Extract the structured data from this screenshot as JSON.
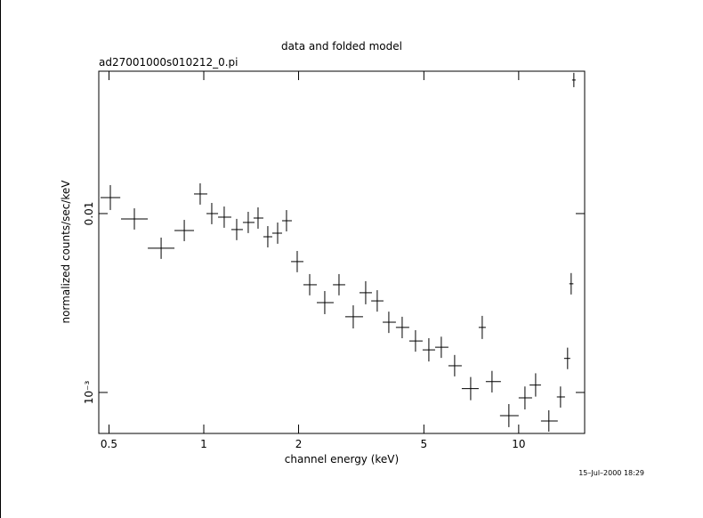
{
  "chart_data": {
    "type": "errorbar",
    "title": "data and folded model",
    "subtitle": "ad27001000s010212_0.pi",
    "x_label": "channel energy (keV)",
    "y_label": "normalized counts/sec/keV",
    "annotation": "15–Jul–2000 18:29",
    "x_scale": "log",
    "y_scale": "log",
    "xlim": [
      0.464,
      16.2
    ],
    "ylim": [
      0.00059,
      0.0625
    ],
    "xticks": [
      0.5,
      1,
      2,
      5,
      10
    ],
    "yticks": [
      {
        "value": 0.001,
        "label": "10⁻³"
      },
      0.01
    ],
    "color": "#000000",
    "x": [
      0.505,
      0.602,
      0.732,
      0.867,
      0.974,
      1.06,
      1.161,
      1.272,
      1.384,
      1.487,
      1.597,
      1.716,
      1.831,
      1.98,
      2.169,
      2.422,
      2.688,
      2.983,
      3.267,
      3.555,
      3.869,
      4.266,
      4.703,
      5.185,
      5.679,
      6.261,
      7.04,
      7.661,
      8.229,
      9.309,
      10.47,
      11.32,
      12.47,
      13.58,
      14.3,
      14.68,
      14.97
    ],
    "x_low": [
      0.47,
      0.546,
      0.664,
      0.807,
      0.931,
      1.02,
      1.11,
      1.223,
      1.331,
      1.439,
      1.546,
      1.65,
      1.773,
      1.893,
      2.072,
      2.285,
      2.571,
      2.813,
      3.122,
      3.401,
      3.7,
      4.075,
      4.493,
      4.954,
      5.428,
      5.982,
      6.596,
      7.465,
      7.863,
      8.723,
      10.0,
      10.83,
      11.77,
      13.22,
      13.94,
      14.48,
      14.78
    ],
    "x_high": [
      0.543,
      0.664,
      0.807,
      0.931,
      1.026,
      1.11,
      1.223,
      1.331,
      1.449,
      1.546,
      1.65,
      1.773,
      1.904,
      2.072,
      2.285,
      2.585,
      2.813,
      3.204,
      3.42,
      3.721,
      4.075,
      4.493,
      4.954,
      5.428,
      5.982,
      6.596,
      7.465,
      7.863,
      8.78,
      10.0,
      11.03,
      11.77,
      13.31,
      14.03,
      14.58,
      14.92,
      15.17
    ],
    "values": [
      0.01229,
      0.00933,
      0.0064,
      0.00804,
      0.01287,
      0.01,
      0.00955,
      0.00814,
      0.00892,
      0.00944,
      0.00742,
      0.00777,
      0.00912,
      0.00539,
      0.004,
      0.00318,
      0.004,
      0.00265,
      0.00361,
      0.00325,
      0.00247,
      0.00231,
      0.00194,
      0.00173,
      0.00179,
      0.00141,
      0.00105,
      0.00231,
      0.00115,
      0.000742,
      0.000933,
      0.0011,
      0.000693,
      0.000944,
      0.00155,
      0.00405,
      0.0558
    ],
    "y_low": [
      0.01047,
      0.00814,
      0.00558,
      0.00701,
      0.01122,
      0.00872,
      0.00833,
      0.0071,
      0.00778,
      0.00823,
      0.00647,
      0.00678,
      0.00795,
      0.0047,
      0.00349,
      0.00274,
      0.00349,
      0.00228,
      0.00311,
      0.00283,
      0.00215,
      0.00201,
      0.00169,
      0.00149,
      0.00156,
      0.00123,
      0.000905,
      0.00199,
      0.001,
      0.00064,
      0.000804,
      0.000948,
      0.000604,
      0.000823,
      0.00135,
      0.00353,
      0.0509
    ],
    "y_high": [
      0.01443,
      0.0107,
      0.00734,
      0.00922,
      0.01476,
      0.01147,
      0.01095,
      0.00934,
      0.01023,
      0.01083,
      0.00851,
      0.00891,
      0.01046,
      0.00618,
      0.00459,
      0.00369,
      0.00459,
      0.00307,
      0.00419,
      0.00373,
      0.00283,
      0.00265,
      0.00223,
      0.00201,
      0.00205,
      0.00162,
      0.00122,
      0.00268,
      0.00132,
      0.000861,
      0.00108,
      0.00128,
      0.000795,
      0.00108,
      0.00178,
      0.00465,
      0.0612
    ]
  }
}
